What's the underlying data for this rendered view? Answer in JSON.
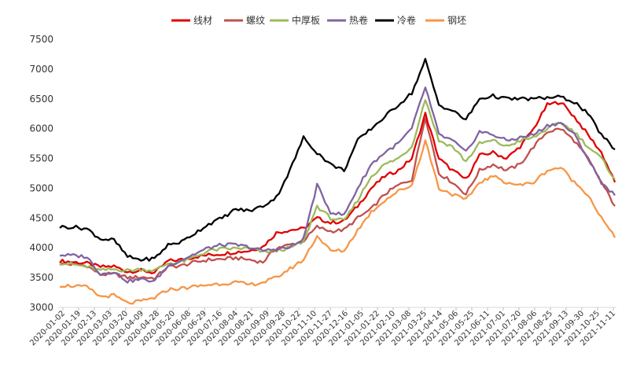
{
  "chart_data": {
    "type": "line",
    "title": "",
    "xlabel": "",
    "ylabel": "",
    "ylim": [
      3000,
      7500
    ],
    "yticks": [
      3000,
      3500,
      4000,
      4500,
      5000,
      5500,
      6000,
      6500,
      7000,
      7500
    ],
    "grid": false,
    "legend_position": "top",
    "x_start": "2020-01-02",
    "x_end": "2021-11-19",
    "x_tick_labels": [
      "2020-01-02",
      "2020-01-19",
      "2020-02-13",
      "2020-03-03",
      "2020-03-20",
      "2020-04-09",
      "2020-04-28",
      "2020-05-20",
      "2020-06-08",
      "2020-06-29",
      "2020-07-16",
      "2020-08-04",
      "2020-08-21",
      "2020-09-09",
      "2020-09-28",
      "2020-10-22",
      "2020-11-10",
      "2020-11-27",
      "2020-12-16",
      "2021-01-05",
      "2021-01-22",
      "2021-02-10",
      "2021-03-08",
      "2021-03-25",
      "2021-04-14",
      "2021-05-06",
      "2021-05-25",
      "2021-06-11",
      "2021-07-01",
      "2021-07-20",
      "2021-08-06",
      "2021-08-25",
      "2021-09-13",
      "2021-09-30",
      "2021-10-25",
      "2021-11-11"
    ],
    "series": [
      {
        "name": "线材",
        "color": "#e00000",
        "values": [
          3780,
          3760,
          3740,
          3680,
          3690,
          3600,
          3620,
          3580,
          3780,
          3800,
          3850,
          3880,
          3900,
          3930,
          3950,
          4020,
          4250,
          4300,
          4320,
          4500,
          4420,
          4450,
          4700,
          5000,
          5200,
          5300,
          5500,
          6250,
          5500,
          5300,
          5150,
          5550,
          5600,
          5500,
          5700,
          6000,
          6400,
          6450,
          6200,
          5900,
          5600,
          5100
        ]
      },
      {
        "name": "螺纹",
        "color": "#c0504d",
        "values": [
          3730,
          3720,
          3700,
          3550,
          3560,
          3500,
          3510,
          3490,
          3680,
          3700,
          3760,
          3800,
          3810,
          3830,
          3800,
          3760,
          4000,
          4050,
          4120,
          4350,
          4280,
          4300,
          4500,
          4650,
          4900,
          5050,
          5150,
          6200,
          5250,
          5100,
          4900,
          5300,
          5400,
          5300,
          5400,
          5700,
          5950,
          6000,
          5800,
          5500,
          5100,
          4700
        ]
      },
      {
        "name": "中厚板",
        "color": "#9bbb59",
        "values": [
          3750,
          3720,
          3680,
          3620,
          3640,
          3620,
          3640,
          3620,
          3740,
          3760,
          3850,
          3950,
          3980,
          3990,
          3990,
          3930,
          3950,
          4000,
          4100,
          4700,
          4500,
          4450,
          4800,
          5200,
          5400,
          5500,
          5700,
          6500,
          5800,
          5700,
          5450,
          5750,
          5800,
          5700,
          5800,
          5850,
          6000,
          6100,
          5950,
          5700,
          5500,
          5150
        ]
      },
      {
        "name": "热卷",
        "color": "#8064a2",
        "values": [
          3880,
          3870,
          3850,
          3560,
          3600,
          3440,
          3470,
          3440,
          3700,
          3800,
          3900,
          4000,
          4050,
          4050,
          4010,
          3950,
          3980,
          4000,
          4150,
          5050,
          4600,
          4550,
          5000,
          5400,
          5600,
          5750,
          6000,
          6700,
          5900,
          5800,
          5600,
          5950,
          5900,
          5800,
          5850,
          5900,
          6050,
          6100,
          5900,
          5500,
          5100,
          4880
        ]
      },
      {
        "name": "冷卷",
        "color": "#000000",
        "values": [
          4350,
          4350,
          4320,
          4150,
          4130,
          3850,
          3800,
          3820,
          4050,
          4100,
          4250,
          4400,
          4500,
          4650,
          4620,
          4700,
          4850,
          5300,
          5850,
          5600,
          5400,
          5300,
          5800,
          6000,
          6200,
          6400,
          6600,
          7150,
          6400,
          6300,
          6150,
          6500,
          6550,
          6500,
          6500,
          6500,
          6520,
          6530,
          6450,
          6250,
          5900,
          5650
        ]
      },
      {
        "name": "钢坯",
        "color": "#f79646",
        "values": [
          3370,
          3360,
          3340,
          3180,
          3200,
          3070,
          3100,
          3160,
          3300,
          3320,
          3350,
          3380,
          3400,
          3420,
          3380,
          3420,
          3500,
          3650,
          3800,
          4200,
          3950,
          3950,
          4300,
          4600,
          4800,
          4950,
          5050,
          5800,
          5000,
          4900,
          4800,
          5100,
          5200,
          5100,
          5050,
          5100,
          5300,
          5350,
          5100,
          4900,
          4500,
          4170
        ]
      }
    ]
  }
}
